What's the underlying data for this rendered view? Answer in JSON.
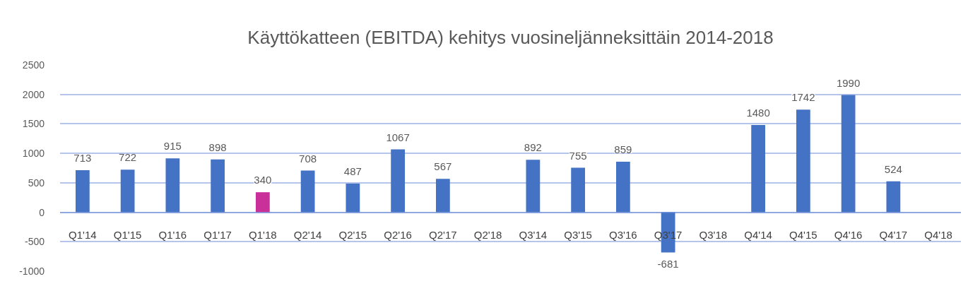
{
  "chart_data": {
    "type": "bar",
    "title": "Käyttökatteen (EBITDA) kehitys vuosineljänneksittäin 2014-2018",
    "categories": [
      "Q1'14",
      "Q1'15",
      "Q1'16",
      "Q1'17",
      "Q1'18",
      "Q2'14",
      "Q2'15",
      "Q2'16",
      "Q2'17",
      "Q2'18",
      "Q3'14",
      "Q3'15",
      "Q3'16",
      "Q3'17",
      "Q3'18",
      "Q4'14",
      "Q4'15",
      "Q4'16",
      "Q4'17",
      "Q4'18"
    ],
    "values": [
      713,
      722,
      915,
      898,
      340,
      708,
      487,
      1067,
      567,
      null,
      892,
      755,
      859,
      -681,
      null,
      1480,
      1742,
      1990,
      524,
      null
    ],
    "colors": [
      "#4472c4",
      "#4472c4",
      "#4472c4",
      "#4472c4",
      "#c9309a",
      "#4472c4",
      "#4472c4",
      "#4472c4",
      "#4472c4",
      "#4472c4",
      "#4472c4",
      "#4472c4",
      "#4472c4",
      "#4472c4",
      "#4472c4",
      "#4472c4",
      "#4472c4",
      "#4472c4",
      "#4472c4",
      "#4472c4"
    ],
    "ylim": [
      -1000,
      2500
    ],
    "yticks": [
      -1000,
      -500,
      0,
      500,
      1000,
      1500,
      2000,
      2500
    ],
    "grid": "y",
    "data_labels": true
  }
}
